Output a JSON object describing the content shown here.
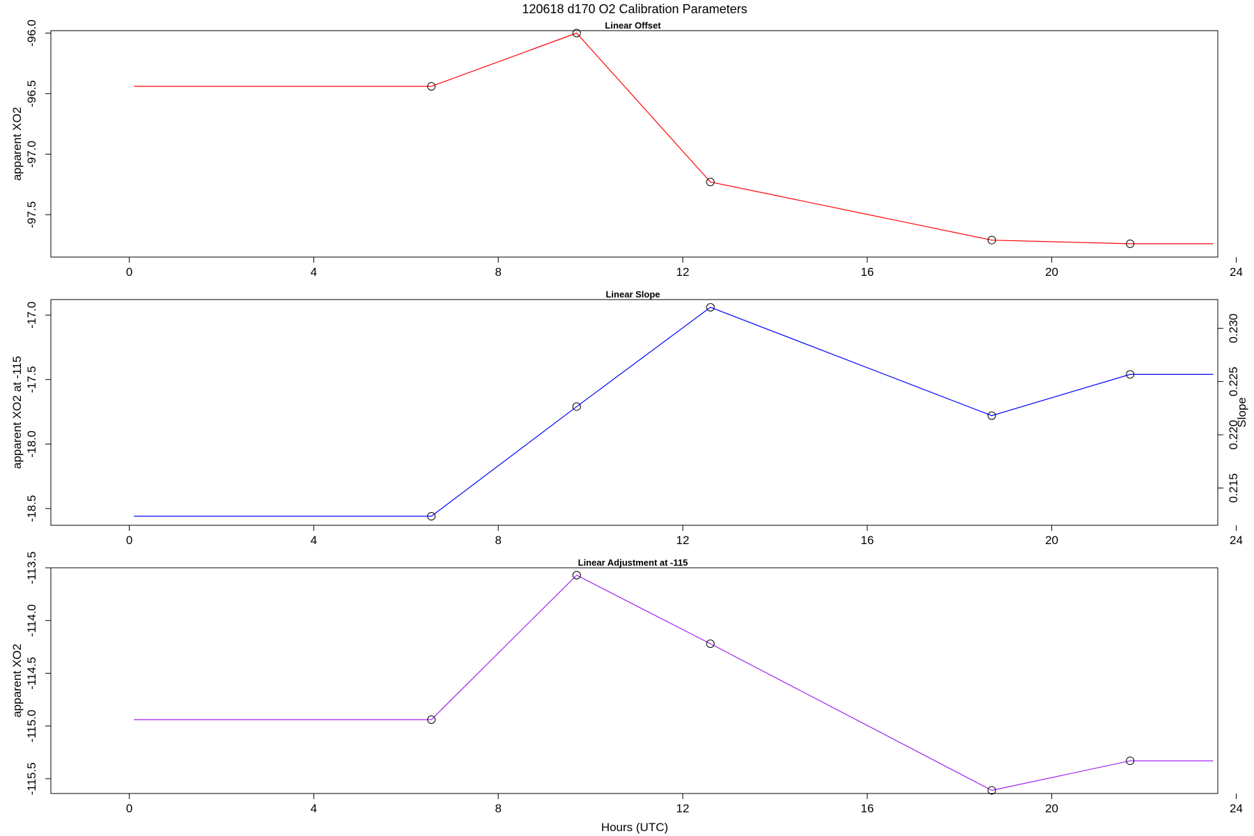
{
  "title": "120618   d170   O2 Calibration Parameters",
  "xlabel": "Hours (UTC)",
  "chart_data": [
    {
      "type": "line",
      "title": "Linear Offset",
      "ylabel": "apparent XO2",
      "xlim": [
        -1.7,
        23.6
      ],
      "ylim": [
        -97.85,
        -95.98
      ],
      "x_ticks": [
        0,
        4,
        8,
        12,
        16,
        20,
        24
      ],
      "y_ticks": [
        -97.5,
        -97.0,
        -96.5,
        -96.0
      ],
      "y_tick_labels": [
        "-97.5",
        "-97.0",
        "-96.5",
        "-96.0"
      ],
      "color": "#ff0000",
      "line_x": [
        0.1,
        6.55,
        9.7,
        12.6,
        18.7,
        21.7,
        23.5
      ],
      "line_y": [
        -96.44,
        -96.44,
        -96.0,
        -97.23,
        -97.71,
        -97.74,
        -97.74
      ],
      "points_x": [
        6.55,
        9.7,
        12.6,
        18.7,
        21.7
      ],
      "points_y": [
        -96.44,
        -96.0,
        -97.23,
        -97.71,
        -97.74
      ]
    },
    {
      "type": "line",
      "title": "Linear Slope",
      "ylabel": "apparent XO2 at -115",
      "ylabel_right": "Slope",
      "xlim": [
        -1.7,
        23.6
      ],
      "ylim": [
        -18.63,
        -16.88
      ],
      "x_ticks": [
        0,
        4,
        8,
        12,
        16,
        20,
        24
      ],
      "y_ticks": [
        -18.5,
        -18.0,
        -17.5,
        -17.0
      ],
      "y_tick_labels": [
        "-18.5",
        "-18.0",
        "-17.5",
        "-17.0"
      ],
      "y_right_ticks": [
        0.215,
        0.22,
        0.225,
        0.23
      ],
      "y_right_tick_labels": [
        "0.215",
        "0.220",
        "0.225",
        "0.230"
      ],
      "y_right_lim": [
        0.2115,
        0.2327
      ],
      "color": "#0000ff",
      "line_x": [
        0.1,
        6.55,
        9.7,
        12.6,
        18.7,
        21.7,
        23.5
      ],
      "line_y": [
        -18.56,
        -18.56,
        -17.71,
        -16.94,
        -17.78,
        -17.46,
        -17.46
      ],
      "points_x": [
        6.55,
        9.7,
        12.6,
        18.7,
        21.7
      ],
      "points_y": [
        -18.56,
        -17.71,
        -16.94,
        -17.78,
        -17.46
      ]
    },
    {
      "type": "line",
      "title": "Linear Adjustment at -115",
      "ylabel": "apparent XO2",
      "xlim": [
        -1.7,
        23.6
      ],
      "ylim": [
        -115.64,
        -113.5
      ],
      "x_ticks": [
        0,
        4,
        8,
        12,
        16,
        20,
        24
      ],
      "y_ticks": [
        -115.5,
        -115.0,
        -114.5,
        -114.0,
        -113.5
      ],
      "y_tick_labels": [
        "-115.5",
        "-115.0",
        "-114.5",
        "-114.0",
        "-113.5"
      ],
      "color": "#a020f0",
      "line_x": [
        0.1,
        6.55,
        9.7,
        12.6,
        18.7,
        21.7,
        23.5
      ],
      "line_y": [
        -114.94,
        -114.94,
        -113.57,
        -114.22,
        -115.61,
        -115.33,
        -115.33
      ],
      "points_x": [
        6.55,
        9.7,
        12.6,
        18.7,
        21.7
      ],
      "points_y": [
        -114.94,
        -113.57,
        -114.22,
        -115.61,
        -115.33
      ]
    }
  ]
}
